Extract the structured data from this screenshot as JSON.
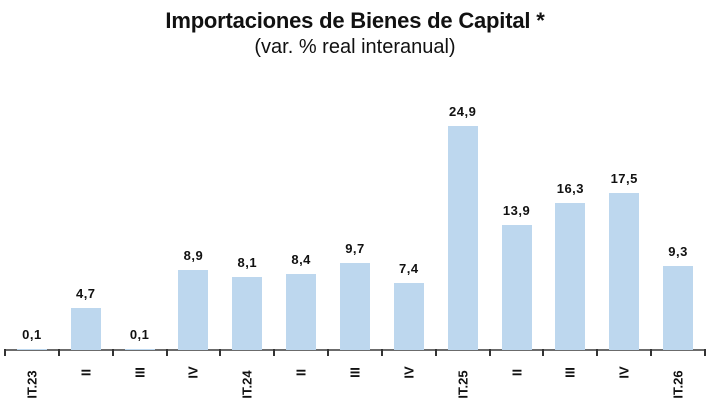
{
  "chart_data": {
    "type": "bar",
    "title": "Importaciones de Bienes de Capital *",
    "subtitle": "(var. % real interanual)",
    "xlabel": "",
    "ylabel": "",
    "categories": [
      "IT.23",
      "II",
      "III",
      "IV",
      "IT.24",
      "II",
      "III",
      "IV",
      "IT.25",
      "II",
      "III",
      "IV",
      "IT.26"
    ],
    "values": [
      0.1,
      4.7,
      0.1,
      8.9,
      8.1,
      8.4,
      9.7,
      7.4,
      24.9,
      13.9,
      16.3,
      17.5,
      9.3
    ],
    "value_labels": [
      "0,1",
      "4,7",
      "0,1",
      "8,9",
      "8,1",
      "8,4",
      "9,7",
      "7,4",
      "24,9",
      "13,9",
      "16,3",
      "17,5",
      "9,3"
    ],
    "ylim": [
      0,
      25
    ],
    "grid": false,
    "legend": null,
    "bar_color": "#BDD7EE"
  }
}
